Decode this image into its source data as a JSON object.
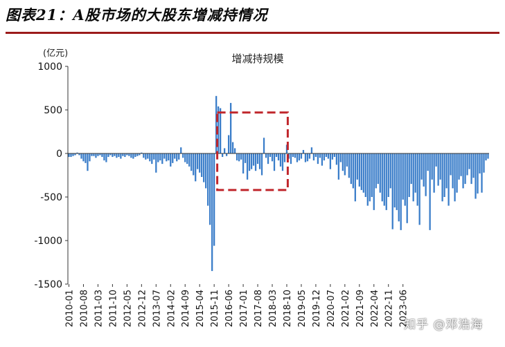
{
  "figure_title": "图表21：A股市场的大股东增减持情况",
  "watermark": "知乎 @邓浩海",
  "colors": {
    "bar": "#3a7dc9",
    "highlight_box": "#c0262b",
    "title_rule": "#9b1b1b"
  },
  "chart_data": {
    "type": "bar",
    "title": "增减持规模",
    "unit_label": "(亿元)",
    "ylim": [
      -1500,
      1000
    ],
    "yticks": [
      1000,
      500,
      0,
      -500,
      -1000,
      -1500
    ],
    "grid": false,
    "xtick_labels": [
      "2010-01",
      "2010-08",
      "2011-03",
      "2011-10",
      "2012-05",
      "2012-12",
      "2013-07",
      "2014-02",
      "2014-09",
      "2015-04",
      "2015-11",
      "2016-06",
      "2017-01",
      "2017-08",
      "2018-03",
      "2018-10",
      "2019-05",
      "2019-12",
      "2020-07",
      "2021-02",
      "2021-09",
      "2022-04",
      "2022-11",
      "2023-06"
    ],
    "annotation": "highlight box 2016-01 to 2018-10",
    "start_month": "2010-01",
    "values": [
      -40,
      -40,
      -30,
      -20,
      10,
      -20,
      -60,
      -90,
      -110,
      -200,
      -90,
      -30,
      -30,
      -50,
      -30,
      -20,
      -40,
      -80,
      -100,
      -40,
      -20,
      -40,
      -30,
      -50,
      -40,
      -60,
      -30,
      -40,
      -20,
      -30,
      -50,
      -60,
      -40,
      -30,
      -20,
      10,
      -50,
      -70,
      -60,
      -90,
      -120,
      -70,
      -220,
      -100,
      -80,
      -120,
      -60,
      -90,
      -80,
      -150,
      -110,
      -60,
      -90,
      -70,
      70,
      -50,
      -100,
      -120,
      -150,
      -200,
      -250,
      -320,
      -180,
      -220,
      -270,
      -330,
      -400,
      -600,
      -820,
      -1350,
      -1060,
      660,
      540,
      520,
      -40,
      60,
      -30,
      210,
      580,
      130,
      60,
      -80,
      -90,
      -70,
      -230,
      -110,
      -300,
      -200,
      -180,
      -140,
      -200,
      -120,
      -180,
      -250,
      180,
      -50,
      -120,
      -40,
      -90,
      -200,
      -40,
      -80,
      -150,
      -200,
      -100,
      100,
      -60,
      -120,
      -40,
      -50,
      -100,
      -80,
      -60,
      40,
      -100,
      -90,
      -60,
      70,
      -80,
      -40,
      -120,
      -50,
      -140,
      -80,
      -40,
      -60,
      -180,
      -70,
      -40,
      -130,
      -300,
      -100,
      -200,
      -250,
      -150,
      -280,
      -350,
      -400,
      -550,
      -300,
      -380,
      -420,
      -450,
      -500,
      -600,
      -550,
      -500,
      -650,
      -400,
      -350,
      -450,
      -550,
      -600,
      -650,
      -500,
      -400,
      -870,
      -620,
      -650,
      -780,
      -880,
      -530,
      -600,
      -800,
      -500,
      -350,
      -550,
      -450,
      -600,
      -820,
      -300,
      -380,
      -490,
      -200,
      -880,
      -300,
      -450,
      -150,
      -370,
      -300,
      -550,
      -500,
      -400,
      -600,
      -250,
      -400,
      -550,
      -450,
      -300,
      -260,
      -400,
      -350,
      -250,
      -180,
      -350,
      -280,
      -520,
      -460,
      -230,
      -450,
      -220,
      -80,
      -60
    ]
  }
}
